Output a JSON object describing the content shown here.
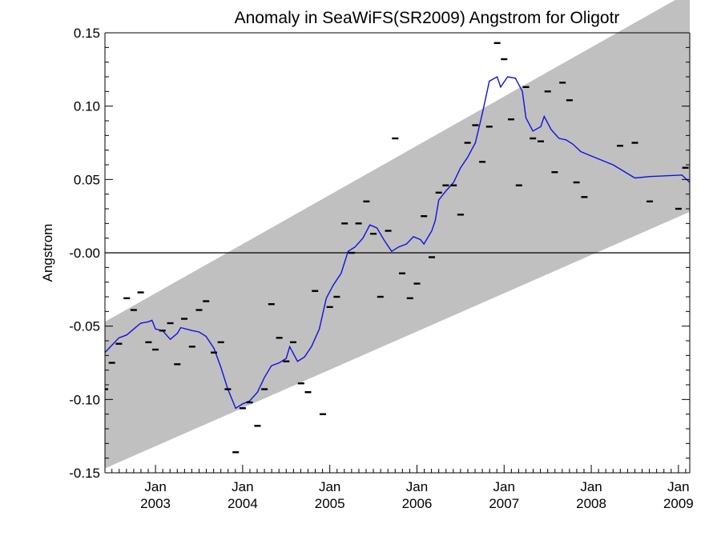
{
  "chart_data": {
    "type": "scatter",
    "title": "Anomaly in SeaWiFS(SR2009) Angstrom for Oligotr",
    "xlabel": "",
    "ylabel": "Angstrom",
    "xlim": [
      2002.42,
      2009.13
    ],
    "ylim": [
      -0.15,
      0.15
    ],
    "grid": false,
    "legend": "none",
    "x_ticks": [
      {
        "x": 2003.0,
        "month": "Jan",
        "year": "2003"
      },
      {
        "x": 2004.0,
        "month": "Jan",
        "year": "2004"
      },
      {
        "x": 2005.0,
        "month": "Jan",
        "year": "2005"
      },
      {
        "x": 2006.0,
        "month": "Jan",
        "year": "2006"
      },
      {
        "x": 2007.0,
        "month": "Jan",
        "year": "2007"
      },
      {
        "x": 2008.0,
        "month": "Jan",
        "year": "2008"
      },
      {
        "x": 2009.0,
        "month": "Jan",
        "year": "2009"
      }
    ],
    "y_ticks": [
      {
        "y": -0.15,
        "label": "-0.15"
      },
      {
        "y": -0.1,
        "label": "-0.10"
      },
      {
        "y": -0.05,
        "label": "-0.05"
      },
      {
        "y": 0.0,
        "label": "-0.00"
      },
      {
        "y": 0.05,
        "label": "0.05"
      },
      {
        "y": 0.1,
        "label": "0.10"
      },
      {
        "y": 0.15,
        "label": "0.15"
      }
    ],
    "zero_line": 0.0,
    "band": {
      "color": "#c0c0c0",
      "upper": [
        [
          2002.42,
          -0.047
        ],
        [
          2009.13,
          0.178
        ]
      ],
      "lower": [
        [
          2002.42,
          -0.147
        ],
        [
          2009.13,
          0.028
        ]
      ]
    },
    "monthly_points": {
      "color": "#000000",
      "points": [
        [
          2002.42,
          -0.093
        ],
        [
          2002.5,
          -0.075
        ],
        [
          2002.58,
          -0.062
        ],
        [
          2002.67,
          -0.031
        ],
        [
          2002.75,
          -0.039
        ],
        [
          2002.83,
          -0.027
        ],
        [
          2002.92,
          -0.061
        ],
        [
          2003.0,
          -0.066
        ],
        [
          2003.08,
          -0.053
        ],
        [
          2003.17,
          -0.048
        ],
        [
          2003.25,
          -0.076
        ],
        [
          2003.33,
          -0.045
        ],
        [
          2003.42,
          -0.064
        ],
        [
          2003.5,
          -0.039
        ],
        [
          2003.58,
          -0.033
        ],
        [
          2003.67,
          -0.068
        ],
        [
          2003.75,
          -0.061
        ],
        [
          2003.83,
          -0.093
        ],
        [
          2003.92,
          -0.136
        ],
        [
          2004.0,
          -0.106
        ],
        [
          2004.08,
          -0.102
        ],
        [
          2004.17,
          -0.118
        ],
        [
          2004.25,
          -0.093
        ],
        [
          2004.33,
          -0.035
        ],
        [
          2004.42,
          -0.058
        ],
        [
          2004.5,
          -0.074
        ],
        [
          2004.58,
          -0.061
        ],
        [
          2004.67,
          -0.089
        ],
        [
          2004.75,
          -0.095
        ],
        [
          2004.83,
          -0.026
        ],
        [
          2004.92,
          -0.11
        ],
        [
          2005.0,
          -0.037
        ],
        [
          2005.08,
          -0.03
        ],
        [
          2005.17,
          0.02
        ],
        [
          2005.25,
          0.0
        ],
        [
          2005.33,
          0.02
        ],
        [
          2005.42,
          0.035
        ],
        [
          2005.5,
          0.013
        ],
        [
          2005.58,
          -0.03
        ],
        [
          2005.67,
          0.015
        ],
        [
          2005.75,
          0.078
        ],
        [
          2005.83,
          -0.014
        ],
        [
          2005.92,
          -0.031
        ],
        [
          2006.0,
          -0.021
        ],
        [
          2006.08,
          0.025
        ],
        [
          2006.17,
          -0.003
        ],
        [
          2006.25,
          0.041
        ],
        [
          2006.33,
          0.046
        ],
        [
          2006.42,
          0.046
        ],
        [
          2006.5,
          0.026
        ],
        [
          2006.58,
          0.075
        ],
        [
          2006.67,
          0.087
        ],
        [
          2006.75,
          0.062
        ],
        [
          2006.83,
          0.086
        ],
        [
          2006.92,
          0.143
        ],
        [
          2007.0,
          0.132
        ],
        [
          2007.08,
          0.091
        ],
        [
          2007.17,
          0.046
        ],
        [
          2007.25,
          0.113
        ],
        [
          2007.33,
          0.078
        ],
        [
          2007.42,
          0.076
        ],
        [
          2007.5,
          0.11
        ],
        [
          2007.58,
          0.055
        ],
        [
          2007.67,
          0.116
        ],
        [
          2007.75,
          0.104
        ],
        [
          2007.83,
          0.048
        ],
        [
          2007.92,
          0.038
        ],
        [
          2008.33,
          0.073
        ],
        [
          2008.5,
          0.075
        ],
        [
          2008.67,
          0.035
        ],
        [
          2009.0,
          0.03
        ],
        [
          2009.08,
          0.058
        ]
      ]
    },
    "smoothed_line": {
      "color": "#1010e0",
      "points": [
        [
          2002.42,
          -0.068
        ],
        [
          2002.5,
          -0.063
        ],
        [
          2002.58,
          -0.058
        ],
        [
          2002.67,
          -0.056
        ],
        [
          2002.75,
          -0.052
        ],
        [
          2002.83,
          -0.048
        ],
        [
          2002.92,
          -0.047
        ],
        [
          2002.96,
          -0.046
        ],
        [
          2003.0,
          -0.052
        ],
        [
          2003.08,
          -0.053
        ],
        [
          2003.17,
          -0.059
        ],
        [
          2003.25,
          -0.055
        ],
        [
          2003.29,
          -0.051
        ],
        [
          2003.42,
          -0.053
        ],
        [
          2003.5,
          -0.054
        ],
        [
          2003.58,
          -0.057
        ],
        [
          2003.67,
          -0.065
        ],
        [
          2003.75,
          -0.078
        ],
        [
          2003.83,
          -0.093
        ],
        [
          2003.92,
          -0.106
        ],
        [
          2004.0,
          -0.103
        ],
        [
          2004.08,
          -0.101
        ],
        [
          2004.17,
          -0.095
        ],
        [
          2004.25,
          -0.085
        ],
        [
          2004.33,
          -0.077
        ],
        [
          2004.42,
          -0.075
        ],
        [
          2004.5,
          -0.072
        ],
        [
          2004.54,
          -0.064
        ],
        [
          2004.63,
          -0.074
        ],
        [
          2004.71,
          -0.071
        ],
        [
          2004.79,
          -0.064
        ],
        [
          2004.88,
          -0.052
        ],
        [
          2004.96,
          -0.031
        ],
        [
          2005.04,
          -0.022
        ],
        [
          2005.13,
          -0.014
        ],
        [
          2005.21,
          0.001
        ],
        [
          2005.29,
          0.004
        ],
        [
          2005.38,
          0.01
        ],
        [
          2005.46,
          0.019
        ],
        [
          2005.54,
          0.017
        ],
        [
          2005.63,
          0.008
        ],
        [
          2005.71,
          0.001
        ],
        [
          2005.79,
          0.004
        ],
        [
          2005.88,
          0.006
        ],
        [
          2005.96,
          0.011
        ],
        [
          2006.04,
          0.009
        ],
        [
          2006.08,
          0.006
        ],
        [
          2006.17,
          0.015
        ],
        [
          2006.21,
          0.022
        ],
        [
          2006.25,
          0.036
        ],
        [
          2006.33,
          0.042
        ],
        [
          2006.42,
          0.048
        ],
        [
          2006.5,
          0.058
        ],
        [
          2006.58,
          0.065
        ],
        [
          2006.67,
          0.075
        ],
        [
          2006.75,
          0.095
        ],
        [
          2006.83,
          0.117
        ],
        [
          2006.92,
          0.12
        ],
        [
          2006.96,
          0.113
        ],
        [
          2007.04,
          0.12
        ],
        [
          2007.13,
          0.119
        ],
        [
          2007.21,
          0.11
        ],
        [
          2007.25,
          0.092
        ],
        [
          2007.33,
          0.083
        ],
        [
          2007.42,
          0.086
        ],
        [
          2007.46,
          0.093
        ],
        [
          2007.54,
          0.084
        ],
        [
          2007.63,
          0.078
        ],
        [
          2007.71,
          0.077
        ],
        [
          2007.79,
          0.074
        ],
        [
          2007.88,
          0.069
        ],
        [
          2008.0,
          0.066
        ],
        [
          2008.25,
          0.06
        ],
        [
          2008.5,
          0.051
        ],
        [
          2008.67,
          0.052
        ],
        [
          2009.04,
          0.053
        ],
        [
          2009.13,
          0.048
        ]
      ]
    }
  }
}
